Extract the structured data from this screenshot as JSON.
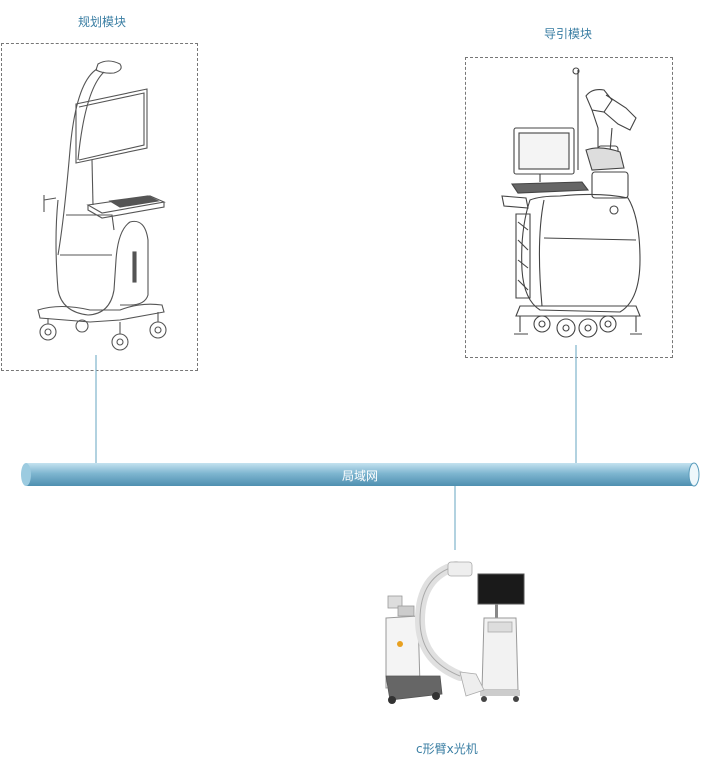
{
  "nodes": {
    "planning": {
      "label": "规划模块"
    },
    "guidance": {
      "label": "导引模块"
    },
    "carm": {
      "label": "c形臂x光机"
    }
  },
  "network": {
    "label": "局域网"
  },
  "colors": {
    "bus_light": "#a9d3e6",
    "bus_dark": "#5a9cbc",
    "connector": "#7fb3cc",
    "label": "#3a7ea3"
  }
}
